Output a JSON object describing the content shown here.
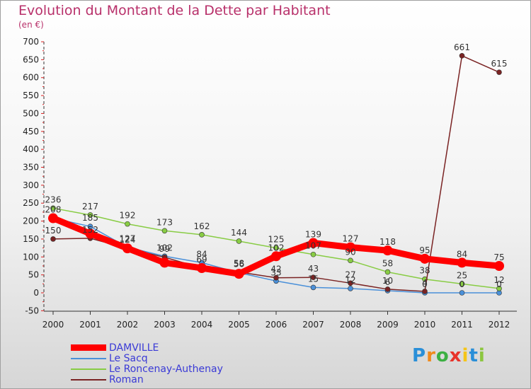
{
  "title": "Evolution du Montant de la Dette par Habitant",
  "subtitle": "(en €)",
  "logo_text": "Proxiti",
  "chart_data": {
    "type": "line",
    "title": "Evolution du Montant de la Dette par Habitant",
    "ylabel": "(en €)",
    "xlabel": "",
    "ylim": [
      -50,
      700
    ],
    "yticks": [
      -50,
      0,
      50,
      100,
      150,
      200,
      250,
      300,
      350,
      400,
      450,
      500,
      550,
      600,
      650,
      700
    ],
    "x": [
      "2000",
      "2001",
      "2002",
      "2003",
      "2004",
      "2005",
      "2006",
      "2007",
      "2008",
      "2009",
      "2010",
      "2011",
      "2012"
    ],
    "grid": false,
    "legend_position": "bottom-left",
    "series": [
      {
        "name": "DAMVILLE",
        "color": "#ff0000",
        "values": [
          208,
          165,
          124,
          84,
          69,
          53,
          102,
          139,
          127,
          118,
          95,
          84,
          75
        ],
        "labels": [
          "",
          "",
          "",
          "",
          "",
          "",
          "102",
          "139",
          "127",
          "118",
          "95",
          "84",
          "75"
        ]
      },
      {
        "name": "Le Sacq",
        "color": "#4a90d9",
        "values": [
          208,
          185,
          127,
          102,
          84,
          56,
          33,
          15,
          12,
          6,
          0,
          0,
          0
        ],
        "labels": [
          "208",
          "185",
          "127",
          "102",
          "84",
          "56",
          "33",
          "15",
          "12",
          "6",
          "0",
          "0",
          "0"
        ]
      },
      {
        "name": "Le Roncenay-Authenay",
        "color": "#88cc44",
        "values": [
          236,
          217,
          192,
          173,
          162,
          144,
          125,
          107,
          90,
          58,
          38,
          25,
          12
        ],
        "labels": [
          "236",
          "217",
          "192",
          "173",
          "162",
          "144",
          "125",
          "107",
          "90",
          "58",
          "38",
          "25",
          "12"
        ]
      },
      {
        "name": "Roman",
        "color": "#7a2323",
        "values": [
          150,
          152,
          124,
          99,
          69,
          58,
          42,
          43,
          27,
          10,
          4,
          661,
          615
        ],
        "labels": [
          "150",
          "152",
          "124",
          "99",
          "69",
          "58",
          "42",
          "43",
          "27",
          "10",
          "4",
          "661",
          "615"
        ]
      }
    ]
  }
}
